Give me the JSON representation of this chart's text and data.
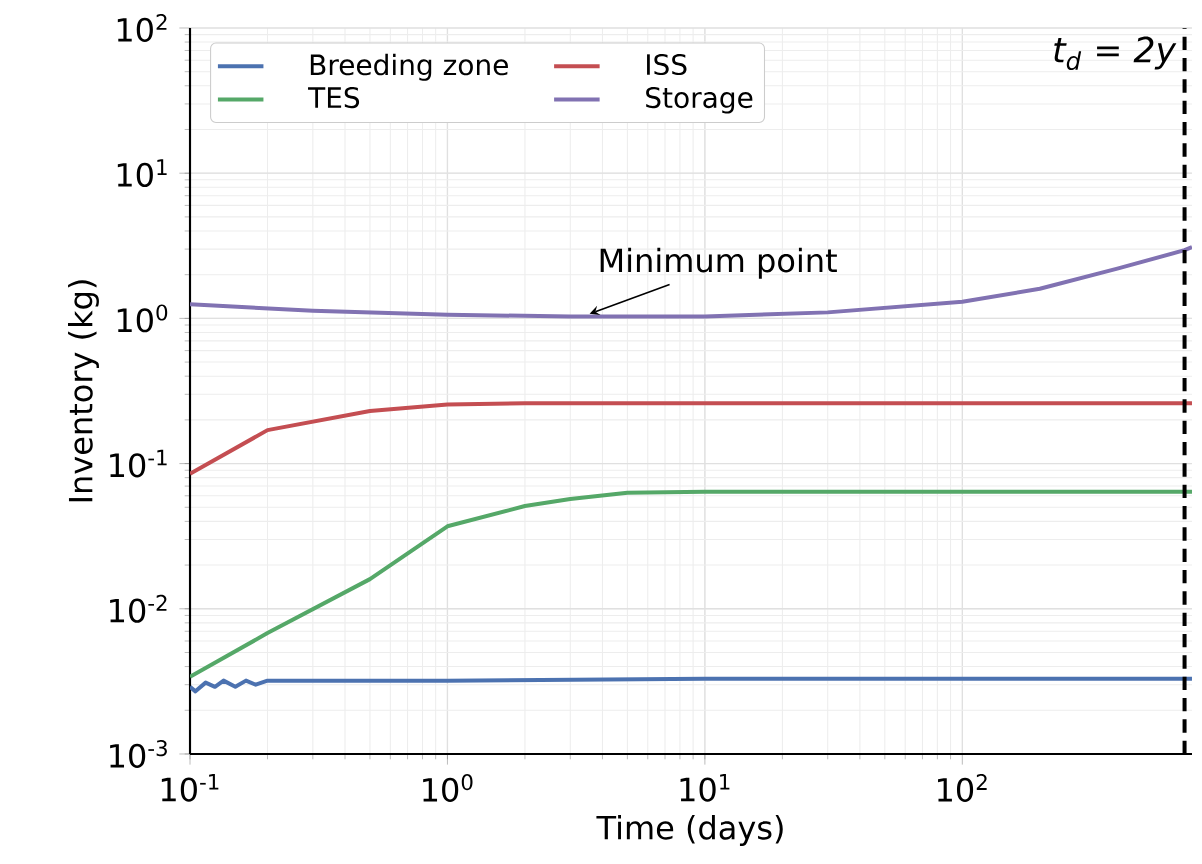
{
  "chart_data": {
    "type": "line",
    "xlabel": "Time (days)",
    "ylabel": "Inventory (kg)",
    "log": "xy",
    "grid": true,
    "legend": "top left",
    "line_style": "solid",
    "marker": "none",
    "xlim": [
      0.1,
      780
    ],
    "ylim": [
      0.001,
      100
    ],
    "xticks": [
      {
        "value": 0.1,
        "label": "10$^{-1}$"
      },
      {
        "value": 1,
        "label": "10$^{0}$"
      },
      {
        "value": 10,
        "label": "10$^{1}$"
      },
      {
        "value": 100,
        "label": "10$^{2}$"
      }
    ],
    "yticks": [
      {
        "value": 0.001,
        "label": "10$^{-3}$"
      },
      {
        "value": 0.01,
        "label": "10$^{-2}$"
      },
      {
        "value": 0.1,
        "label": "10$^{-1}$"
      },
      {
        "value": 1,
        "label": "10$^{0}$"
      },
      {
        "value": 10,
        "label": "10$^{1}$"
      },
      {
        "value": 100,
        "label": "10$^{2}$"
      }
    ],
    "series": [
      {
        "name": "Breeding zone",
        "color": "#4c72b0",
        "x": [
          0.1,
          0.105,
          0.115,
          0.125,
          0.135,
          0.15,
          0.165,
          0.18,
          0.2,
          0.3,
          1,
          10,
          100,
          780
        ],
        "values": [
          0.0029,
          0.0027,
          0.0031,
          0.0029,
          0.0032,
          0.0029,
          0.0032,
          0.003,
          0.0032,
          0.0032,
          0.0032,
          0.0033,
          0.0033,
          0.0033
        ]
      },
      {
        "name": "TES",
        "color": "#55a868",
        "x": [
          0.1,
          0.2,
          0.5,
          1,
          2,
          3,
          5,
          10,
          100,
          780
        ],
        "values": [
          0.0034,
          0.0068,
          0.016,
          0.037,
          0.051,
          0.057,
          0.063,
          0.064,
          0.064,
          0.064
        ]
      },
      {
        "name": "ISS",
        "color": "#c44e52",
        "x": [
          0.1,
          0.2,
          0.5,
          1,
          2,
          10,
          100,
          780
        ],
        "values": [
          0.085,
          0.17,
          0.23,
          0.255,
          0.26,
          0.26,
          0.26,
          0.26
        ]
      },
      {
        "name": "Storage",
        "color": "#8172b2",
        "x": [
          0.1,
          0.3,
          1,
          3,
          10,
          30,
          100,
          200,
          400,
          730,
          780
        ],
        "values": [
          1.25,
          1.13,
          1.06,
          1.03,
          1.03,
          1.1,
          1.3,
          1.6,
          2.2,
          2.95,
          3.1
        ]
      }
    ],
    "ref_lines": [
      {
        "axis": "x",
        "value": 730,
        "color": "#000000",
        "line_style": "dashed"
      }
    ],
    "annotations": [
      {
        "text": "Minimum point",
        "x": 3.4,
        "y": 1.03
      },
      {
        "text": "t$_{d}$ = 2y",
        "x": 730,
        "y": 100
      }
    ]
  }
}
